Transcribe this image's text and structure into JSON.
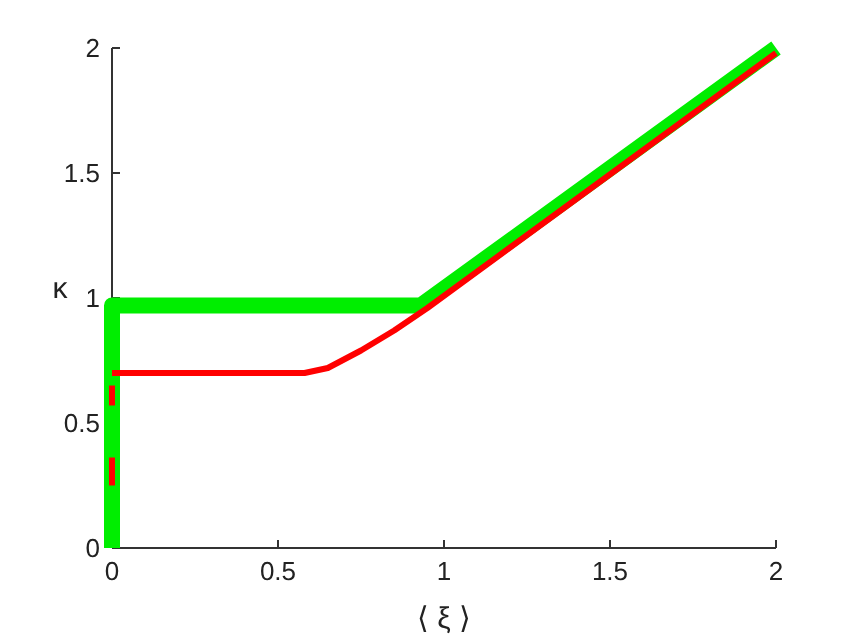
{
  "chart_data": {
    "type": "line",
    "xlabel": "⟨ ξ ⟩",
    "ylabel": "κ",
    "xlim": [
      0,
      2
    ],
    "ylim": [
      0,
      2
    ],
    "xticks": [
      0,
      0.5,
      1,
      1.5,
      2
    ],
    "yticks": [
      0,
      0.5,
      1,
      1.5,
      2
    ],
    "grid": false,
    "series": [
      {
        "color": "#00ee00",
        "x": [
          0,
          0,
          0.93,
          2
        ],
        "values": [
          0,
          0.97,
          0.97,
          2
        ]
      },
      {
        "color": "#ff0000",
        "x": [
          0,
          0.58,
          0.65,
          0.75,
          0.85,
          0.95,
          2
        ],
        "values": [
          0.7,
          0.7,
          0.72,
          0.79,
          0.87,
          0.96,
          1.98
        ]
      },
      {
        "color": "#ff0000",
        "line_style": "dashed",
        "x": [
          0,
          0
        ],
        "values": [
          0.25,
          0.65
        ]
      }
    ]
  }
}
